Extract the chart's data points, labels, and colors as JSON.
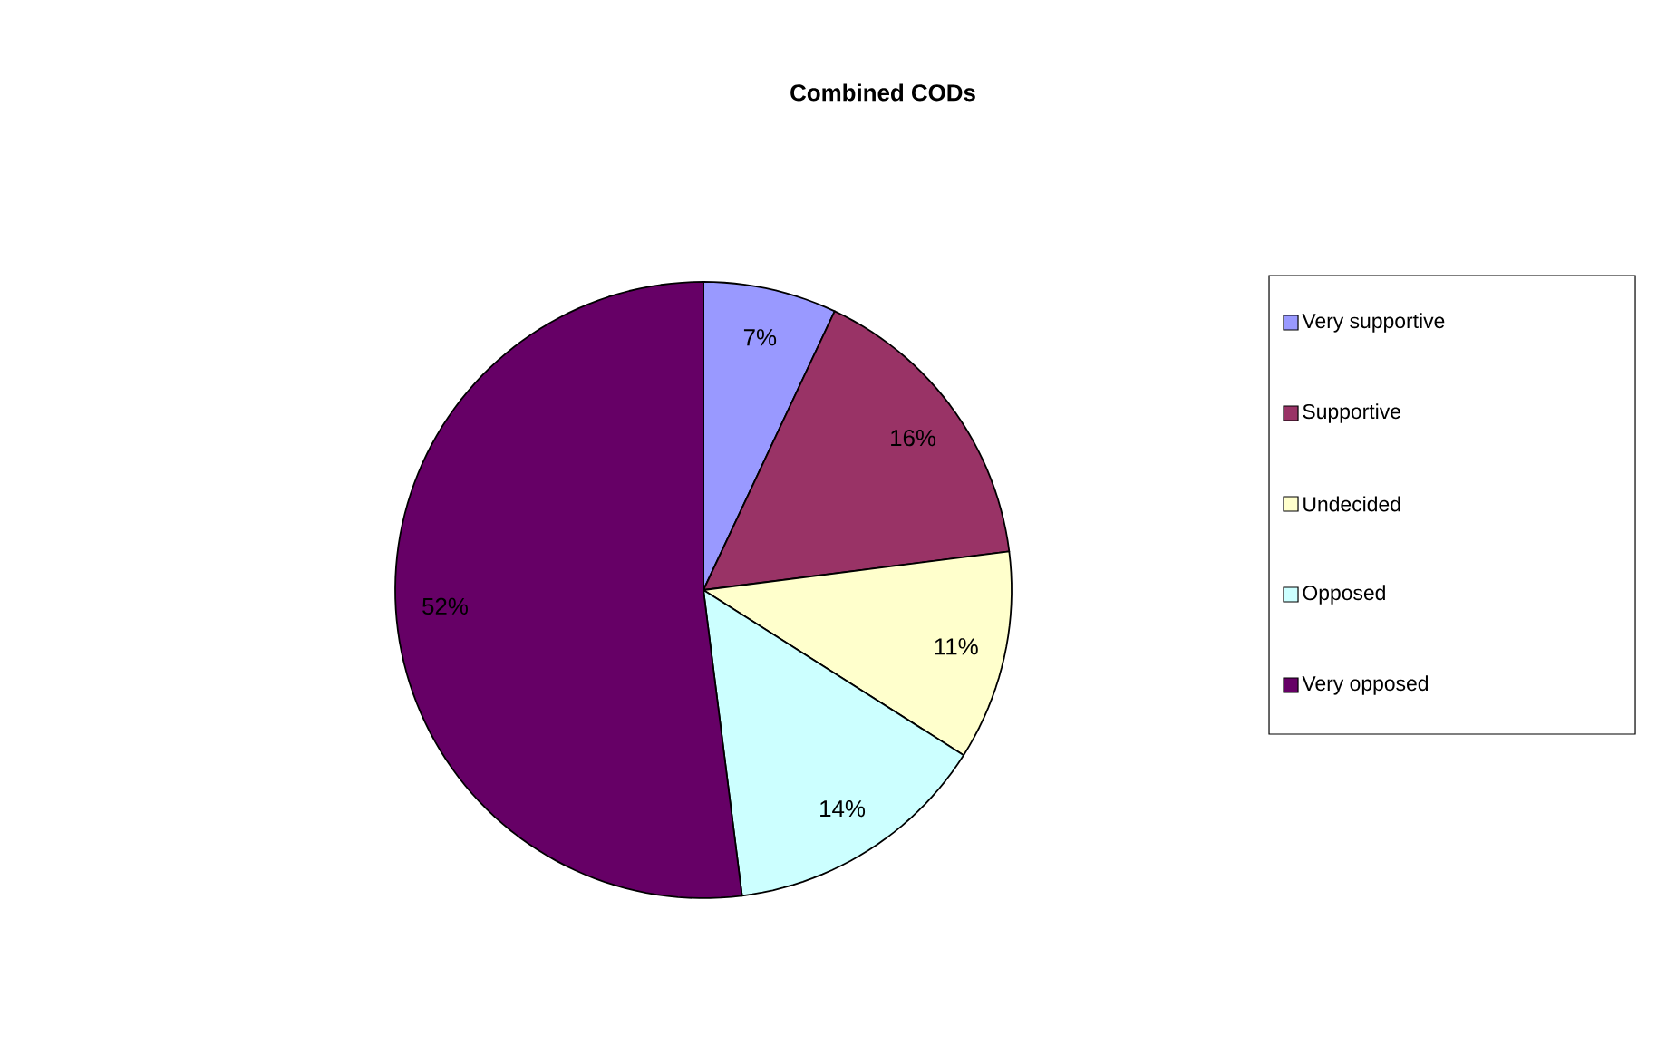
{
  "chart_data": {
    "type": "pie",
    "title": "Combined CODs",
    "categories": [
      "Very supportive",
      "Supportive",
      "Undecided",
      "Opposed",
      "Very opposed"
    ],
    "values": [
      7,
      16,
      11,
      14,
      52
    ],
    "value_labels": [
      "7%",
      "16%",
      "11%",
      "14%",
      "52%"
    ],
    "colors": [
      "#9999ff",
      "#993366",
      "#ffffcc",
      "#ccffff",
      "#660066"
    ],
    "legend": "right"
  }
}
